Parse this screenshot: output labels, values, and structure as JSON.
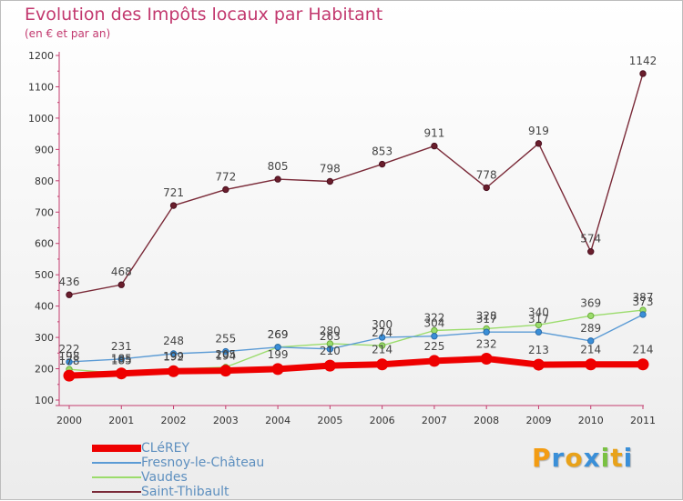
{
  "chart_data": {
    "type": "line",
    "title": "Evolution des Impôts locaux par Habitant",
    "subtitle": "(en € et par an)",
    "xlabel": "",
    "ylabel": "",
    "categories": [
      "2000",
      "2001",
      "2002",
      "2003",
      "2004",
      "2005",
      "2006",
      "2007",
      "2008",
      "2009",
      "2010",
      "2011"
    ],
    "ylim": [
      100,
      1200
    ],
    "yticks": [
      "100",
      "200",
      "300",
      "400",
      "500",
      "600",
      "700",
      "800",
      "900",
      "1000",
      "1100",
      "1200"
    ],
    "grid": false,
    "legend_position": "bottom-left",
    "series": [
      {
        "name": "CLéREY",
        "color": "#ee0000",
        "values": [
          178,
          185,
          192,
          194,
          199,
          210,
          214,
          225,
          232,
          213,
          214,
          214
        ],
        "labels": [
          "178",
          "185",
          "192",
          "194",
          "199",
          "210",
          "214",
          "225",
          "232",
          "213",
          "214",
          "214"
        ]
      },
      {
        "name": "Fresnoy-le-Château",
        "color": "#5b9bd5",
        "values": [
          222,
          231,
          248,
          255,
          269,
          263,
          300,
          304,
          317,
          317,
          289,
          373
        ],
        "labels": [
          "222",
          "231",
          "248",
          "255",
          "269",
          "263",
          "300",
          "304",
          "317",
          "317",
          "289",
          "373"
        ]
      },
      {
        "name": "Vaudes",
        "color": "#9bdc6c",
        "values": [
          198,
          185,
          199,
          205,
          269,
          280,
          274,
          322,
          328,
          340,
          369,
          387
        ],
        "labels": [
          "198",
          "185",
          "199",
          "205",
          "269",
          "280",
          "274",
          "322",
          "328",
          "340",
          "369",
          "387"
        ]
      },
      {
        "name": "Saint-Thibault",
        "color": "#7a2a38",
        "values": [
          436,
          468,
          721,
          772,
          805,
          798,
          853,
          911,
          778,
          919,
          574,
          1142
        ],
        "labels": [
          "436",
          "468",
          "721",
          "772",
          "805",
          "798",
          "853",
          "911",
          "778",
          "919",
          "574",
          "1142"
        ]
      }
    ]
  },
  "brand": {
    "letters": [
      "P",
      "r",
      "o",
      "x",
      "i",
      "t",
      "i"
    ],
    "colors": [
      "#f39c12",
      "#3a8fd8",
      "#e8a21a",
      "#3a8fd8",
      "#7ac142",
      "#e8a21a",
      "#3a8fd8"
    ]
  }
}
